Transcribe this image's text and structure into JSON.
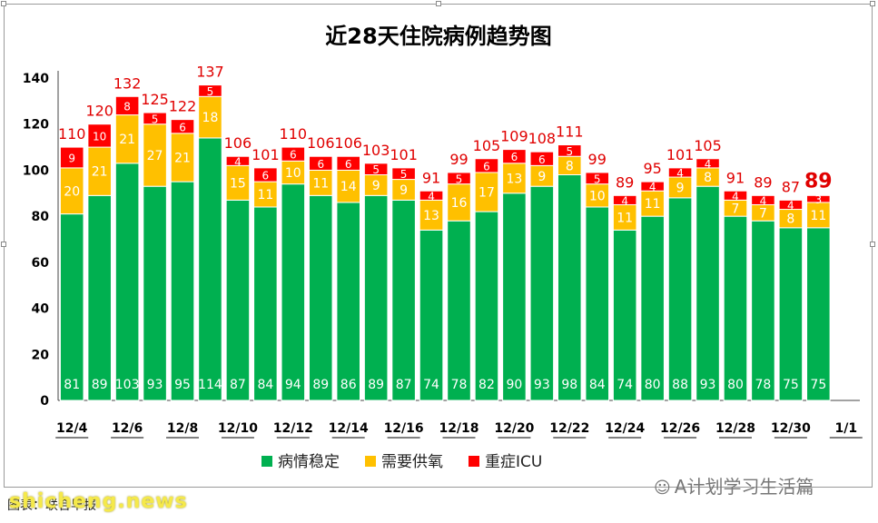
{
  "chart_data": {
    "type": "bar",
    "stacked": true,
    "title": "近28天住院病例趋势图",
    "categories": [
      "12/4",
      "12/5",
      "12/6",
      "12/7",
      "12/8",
      "12/9",
      "12/10",
      "12/11",
      "12/12",
      "12/13",
      "12/14",
      "12/15",
      "12/16",
      "12/17",
      "12/18",
      "12/19",
      "12/20",
      "12/21",
      "12/22",
      "12/23",
      "12/24",
      "12/25",
      "12/26",
      "12/27",
      "12/28",
      "12/29",
      "12/30",
      "12/31",
      "1/1"
    ],
    "x_tick_labels": [
      "12/4",
      "12/6",
      "12/8",
      "12/10",
      "12/12",
      "12/14",
      "12/16",
      "12/18",
      "12/20",
      "12/22",
      "12/24",
      "12/26",
      "12/28",
      "12/30",
      "1/1"
    ],
    "series": [
      {
        "name": "病情稳定",
        "color": "#00b050",
        "values": [
          81,
          89,
          103,
          93,
          95,
          114,
          87,
          84,
          94,
          89,
          86,
          89,
          87,
          74,
          78,
          82,
          90,
          93,
          98,
          84,
          74,
          80,
          88,
          93,
          80,
          78,
          75,
          75,
          null
        ]
      },
      {
        "name": "需要供氧",
        "color": "#ffc000",
        "values": [
          20,
          21,
          21,
          27,
          21,
          18,
          15,
          11,
          10,
          11,
          14,
          9,
          9,
          13,
          16,
          17,
          13,
          9,
          8,
          10,
          11,
          11,
          9,
          8,
          7,
          7,
          8,
          11,
          null
        ]
      },
      {
        "name": "重症ICU",
        "color": "#ff0000",
        "values": [
          9,
          10,
          8,
          5,
          6,
          5,
          4,
          6,
          6,
          6,
          6,
          5,
          5,
          4,
          5,
          6,
          6,
          6,
          5,
          5,
          4,
          4,
          4,
          4,
          4,
          4,
          4,
          3,
          null
        ]
      }
    ],
    "totals": [
      110,
      120,
      132,
      125,
      122,
      137,
      106,
      101,
      110,
      106,
      106,
      103,
      101,
      91,
      99,
      105,
      109,
      108,
      111,
      99,
      89,
      95,
      101,
      105,
      91,
      89,
      87,
      89,
      null
    ],
    "yticks": [
      0,
      20,
      40,
      60,
      80,
      100,
      120,
      140
    ],
    "ylim": [
      0,
      140
    ],
    "legend_position": "bottom"
  },
  "footer": {
    "source": "图表：联合早报",
    "site_watermark": "shicheng.news",
    "wechat_account": "A计划学习生活篇"
  }
}
